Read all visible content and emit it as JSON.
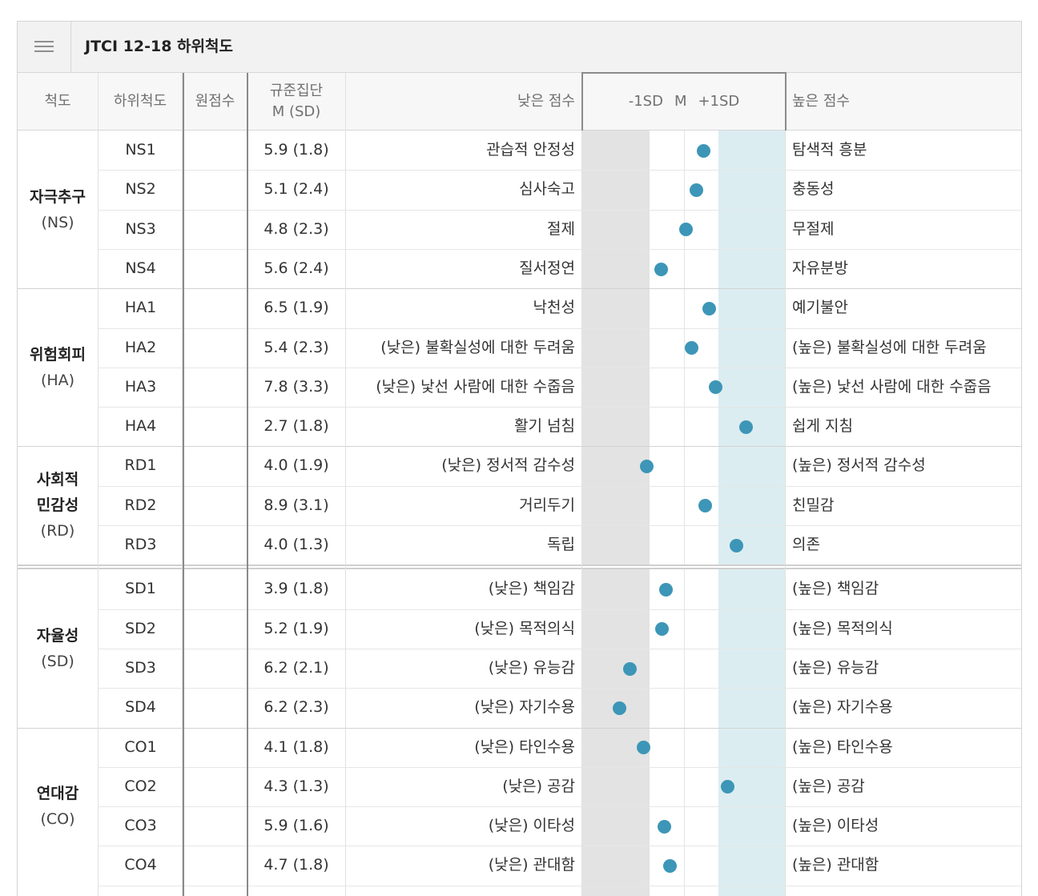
{
  "title": "JTCI 12-18 하위척도",
  "menu_icon": "hamburger-menu-icon",
  "columns": {
    "scale": "척도",
    "subscale": "하위척도",
    "raw": "원점수",
    "norm_line1": "규준집단",
    "norm_line2": "M (SD)",
    "low": "낮은 점수",
    "sd_minus": "-1SD",
    "sd_mean": "M",
    "sd_plus": "+1SD",
    "high": "높은 점수"
  },
  "colors": {
    "dot": "#3d96b7",
    "band_low": "#e3e3e3",
    "band_high": "#dcedf1"
  },
  "groups": [
    {
      "korean": "자극추구",
      "code": "(NS)",
      "rows": [
        {
          "code": "NS1",
          "norm": "5.9 (1.8)",
          "low": "관습적 안정성",
          "high": "탐색적 흥분",
          "z": 0.55
        },
        {
          "code": "NS2",
          "norm": "5.1 (2.4)",
          "low": "심사숙고",
          "high": "충동성",
          "z": 0.35
        },
        {
          "code": "NS3",
          "norm": "4.8 (2.3)",
          "low": "절제",
          "high": "무절제",
          "z": 0.05
        },
        {
          "code": "NS4",
          "norm": "5.6 (2.4)",
          "low": "질서정연",
          "high": "자유분방",
          "z": -0.68
        }
      ]
    },
    {
      "korean": "위험회피",
      "code": "(HA)",
      "rows": [
        {
          "code": "HA1",
          "norm": "6.5 (1.9)",
          "low": "낙천성",
          "high": "예기불안",
          "z": 0.73
        },
        {
          "code": "HA2",
          "norm": "5.4 (2.3)",
          "low": "(낮은) 불확실성에 대한 두려움",
          "high": "(높은) 불확실성에 대한 두려움",
          "z": 0.2
        },
        {
          "code": "HA3",
          "norm": "7.8 (3.3)",
          "low": "(낮은) 낯선 사람에 대한 수줍음",
          "high": "(높은) 낯선 사람에 대한 수줍음",
          "z": 0.9
        },
        {
          "code": "HA4",
          "norm": "2.7 (1.8)",
          "low": "활기 넘침",
          "high": "쉽게 지침",
          "z": 1.8
        }
      ]
    },
    {
      "korean_line1": "사회적",
      "korean_line2": "민감성",
      "code": "(RD)",
      "rows": [
        {
          "code": "RD1",
          "norm": "4.0 (1.9)",
          "low": "(낮은) 정서적 감수성",
          "high": "(높은) 정서적 감수성",
          "z": -1.1
        },
        {
          "code": "RD2",
          "norm": "8.9 (3.1)",
          "low": "거리두기",
          "high": "친밀감",
          "z": 0.6
        },
        {
          "code": "RD3",
          "norm": "4.0 (1.3)",
          "low": "독립",
          "high": "의존",
          "z": 1.5
        }
      ]
    },
    {
      "korean": "자율성",
      "code": "(SD)",
      "rows": [
        {
          "code": "SD1",
          "norm": "3.9 (1.8)",
          "low": "(낮은) 책임감",
          "high": "(높은) 책임감",
          "z": -0.53
        },
        {
          "code": "SD2",
          "norm": "5.2 (1.9)",
          "low": "(낮은) 목적의식",
          "high": "(높은) 목적의식",
          "z": -0.64
        },
        {
          "code": "SD3",
          "norm": "6.2 (2.1)",
          "low": "(낮은) 유능감",
          "high": "(높은) 유능감",
          "z": -1.58
        },
        {
          "code": "SD4",
          "norm": "6.2 (2.3)",
          "low": "(낮은) 자기수용",
          "high": "(높은) 자기수용",
          "z": -1.88
        }
      ]
    },
    {
      "korean": "연대감",
      "code": "(CO)",
      "rows": [
        {
          "code": "CO1",
          "norm": "4.1 (1.8)",
          "low": "(낮은) 타인수용",
          "high": "(높은) 타인수용",
          "z": -1.18
        },
        {
          "code": "CO2",
          "norm": "4.3 (1.3)",
          "low": "(낮은) 공감",
          "high": "(높은) 공감",
          "z": 1.25
        },
        {
          "code": "CO3",
          "norm": "5.9 (1.6)",
          "low": "(낮은) 이타성",
          "high": "(높은) 이타성",
          "z": -0.58
        },
        {
          "code": "CO4",
          "norm": "4.7 (1.8)",
          "low": "(낮은) 관대함",
          "high": "(높은) 관대함",
          "z": -0.42
        }
      ]
    }
  ]
}
